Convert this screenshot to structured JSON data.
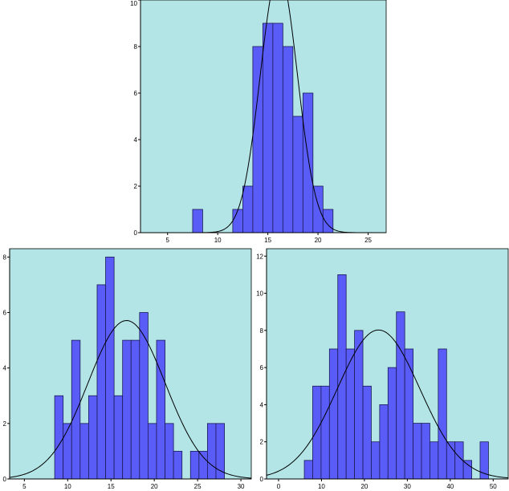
{
  "colors": {
    "plot_bg": "#b3e5e7",
    "bar_fill": "#5a5cf8",
    "bar_stroke": "#1b1b55",
    "curve": "#000000"
  },
  "chart_data": [
    {
      "type": "bar",
      "subtype": "histogram-with-normal-curve",
      "title": "",
      "xlabel": "",
      "ylabel": "",
      "xlim": [
        2.3,
        26.8
      ],
      "ylim": [
        0,
        10
      ],
      "xticks": [
        5,
        10,
        15,
        20,
        25
      ],
      "yticks": [
        0,
        2,
        4,
        6,
        8,
        10
      ],
      "bin_width": 1,
      "bins": [
        {
          "start": 7.5,
          "count": 1
        },
        {
          "start": 11.5,
          "count": 1
        },
        {
          "start": 12.5,
          "count": 2
        },
        {
          "start": 13.5,
          "count": 8
        },
        {
          "start": 14.5,
          "count": 9
        },
        {
          "start": 15.5,
          "count": 9
        },
        {
          "start": 16.5,
          "count": 8
        },
        {
          "start": 17.5,
          "count": 5
        },
        {
          "start": 18.5,
          "count": 6
        },
        {
          "start": 19.5,
          "count": 2
        },
        {
          "start": 20.5,
          "count": 1
        }
      ],
      "normal_curve": {
        "mean": 16.1,
        "sd": 1.85
      },
      "grid": false,
      "legend": "none"
    },
    {
      "type": "bar",
      "subtype": "histogram-with-normal-curve",
      "title": "",
      "xlabel": "",
      "ylabel": "",
      "xlim": [
        3.3,
        31.2
      ],
      "ylim": [
        0,
        8.3
      ],
      "xticks": [
        5,
        10,
        15,
        20,
        25,
        30
      ],
      "yticks": [
        0,
        2,
        4,
        6,
        8
      ],
      "bin_width": 0.98,
      "bins": [
        {
          "start": 8.5,
          "count": 3
        },
        {
          "start": 9.48,
          "count": 2
        },
        {
          "start": 10.46,
          "count": 5
        },
        {
          "start": 11.44,
          "count": 2
        },
        {
          "start": 12.42,
          "count": 3
        },
        {
          "start": 13.4,
          "count": 7
        },
        {
          "start": 14.38,
          "count": 8
        },
        {
          "start": 15.36,
          "count": 3
        },
        {
          "start": 16.34,
          "count": 5
        },
        {
          "start": 17.32,
          "count": 5
        },
        {
          "start": 18.3,
          "count": 6
        },
        {
          "start": 19.28,
          "count": 2
        },
        {
          "start": 20.26,
          "count": 5
        },
        {
          "start": 21.24,
          "count": 2
        },
        {
          "start": 22.22,
          "count": 1
        },
        {
          "start": 24.18,
          "count": 1
        },
        {
          "start": 25.16,
          "count": 1
        },
        {
          "start": 26.14,
          "count": 2
        },
        {
          "start": 27.12,
          "count": 2
        }
      ],
      "normal_curve": {
        "mean": 16.8,
        "sd": 4.45
      },
      "grid": false,
      "legend": "none"
    },
    {
      "type": "bar",
      "subtype": "histogram-with-normal-curve",
      "title": "",
      "xlabel": "",
      "ylabel": "",
      "xlim": [
        -2.8,
        53.5
      ],
      "ylim": [
        0,
        12.4
      ],
      "xticks": [
        0,
        10,
        20,
        30,
        40,
        50
      ],
      "yticks": [
        0,
        2,
        4,
        6,
        8,
        10,
        12
      ],
      "bin_width": 1.95,
      "bins": [
        {
          "start": 6.0,
          "count": 1
        },
        {
          "start": 7.95,
          "count": 5
        },
        {
          "start": 9.9,
          "count": 5
        },
        {
          "start": 11.85,
          "count": 7
        },
        {
          "start": 13.8,
          "count": 11
        },
        {
          "start": 15.75,
          "count": 7
        },
        {
          "start": 17.7,
          "count": 8
        },
        {
          "start": 19.65,
          "count": 5
        },
        {
          "start": 21.6,
          "count": 2
        },
        {
          "start": 23.55,
          "count": 4
        },
        {
          "start": 25.5,
          "count": 6
        },
        {
          "start": 27.45,
          "count": 9
        },
        {
          "start": 29.4,
          "count": 7
        },
        {
          "start": 31.35,
          "count": 3
        },
        {
          "start": 33.3,
          "count": 3
        },
        {
          "start": 35.25,
          "count": 2
        },
        {
          "start": 37.2,
          "count": 7
        },
        {
          "start": 39.15,
          "count": 2
        },
        {
          "start": 41.1,
          "count": 2
        },
        {
          "start": 43.05,
          "count": 1
        },
        {
          "start": 46.95,
          "count": 2
        }
      ],
      "normal_curve": {
        "mean": 23.3,
        "sd": 9.6
      },
      "grid": false,
      "legend": "none"
    }
  ]
}
